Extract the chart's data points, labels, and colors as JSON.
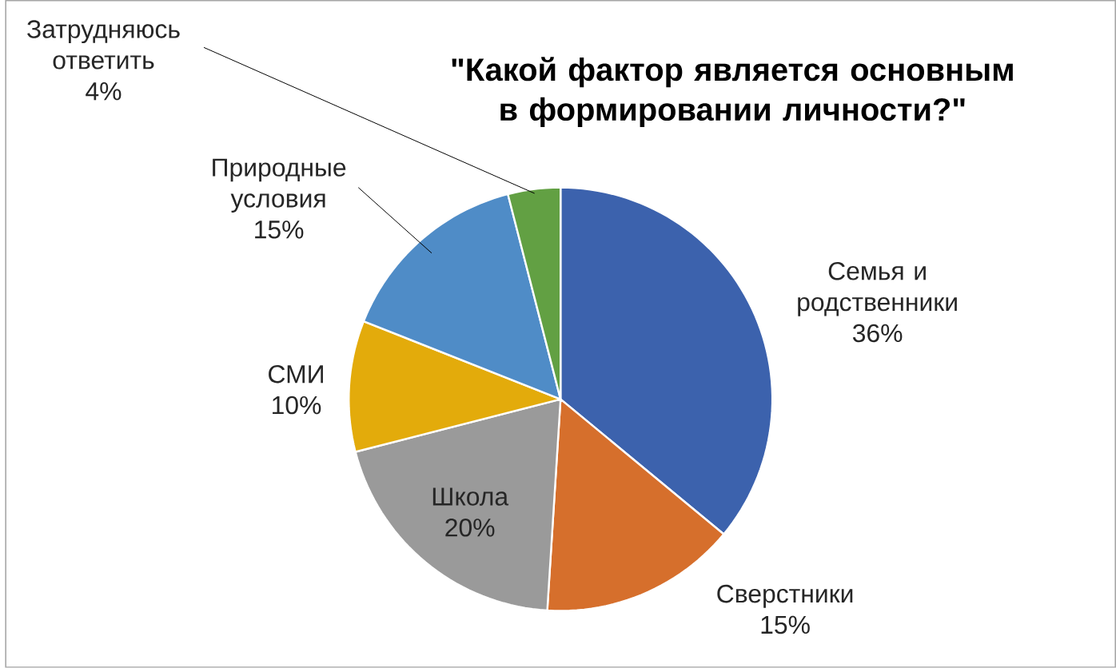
{
  "chart_data": {
    "type": "pie",
    "title": "\"Какой фактор является основным в формировании личности?\"",
    "categories": [
      "Семья и родственники",
      "Сверстники",
      "Школа",
      "СМИ",
      "Природные условия",
      "Затрудняюсь ответить"
    ],
    "values": [
      36,
      15,
      20,
      10,
      15,
      4
    ],
    "colors": [
      "#3c62ad",
      "#d66f2c",
      "#9a9a9a",
      "#e3ab0b",
      "#4f8cc7",
      "#62a043"
    ],
    "value_labels": [
      "36%",
      "15%",
      "20%",
      "10%",
      "15%",
      "4%"
    ]
  }
}
